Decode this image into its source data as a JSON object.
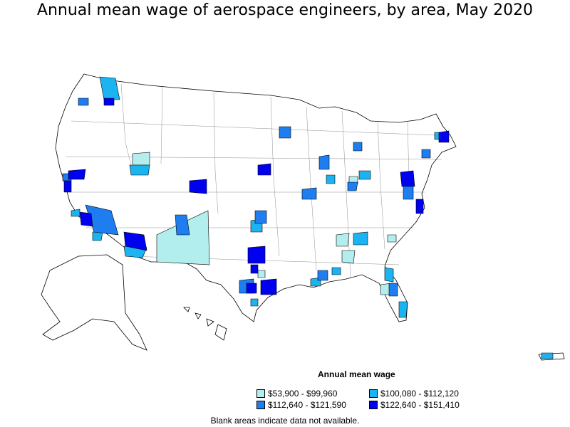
{
  "title": "Annual mean wage of aerospace engineers, by area, May 2020",
  "legend": {
    "title": "Annual mean wage",
    "items": [
      {
        "label": "$53,900 - $99,960",
        "color": "#b3eeee"
      },
      {
        "label": "$100,080 - $112,120",
        "color": "#1cb4f0"
      },
      {
        "label": "$112,640 - $121,590",
        "color": "#1e7ef0"
      },
      {
        "label": "$122,640 - $151,410",
        "color": "#0000f0"
      }
    ]
  },
  "footnote": "Blank areas indicate data not available."
}
